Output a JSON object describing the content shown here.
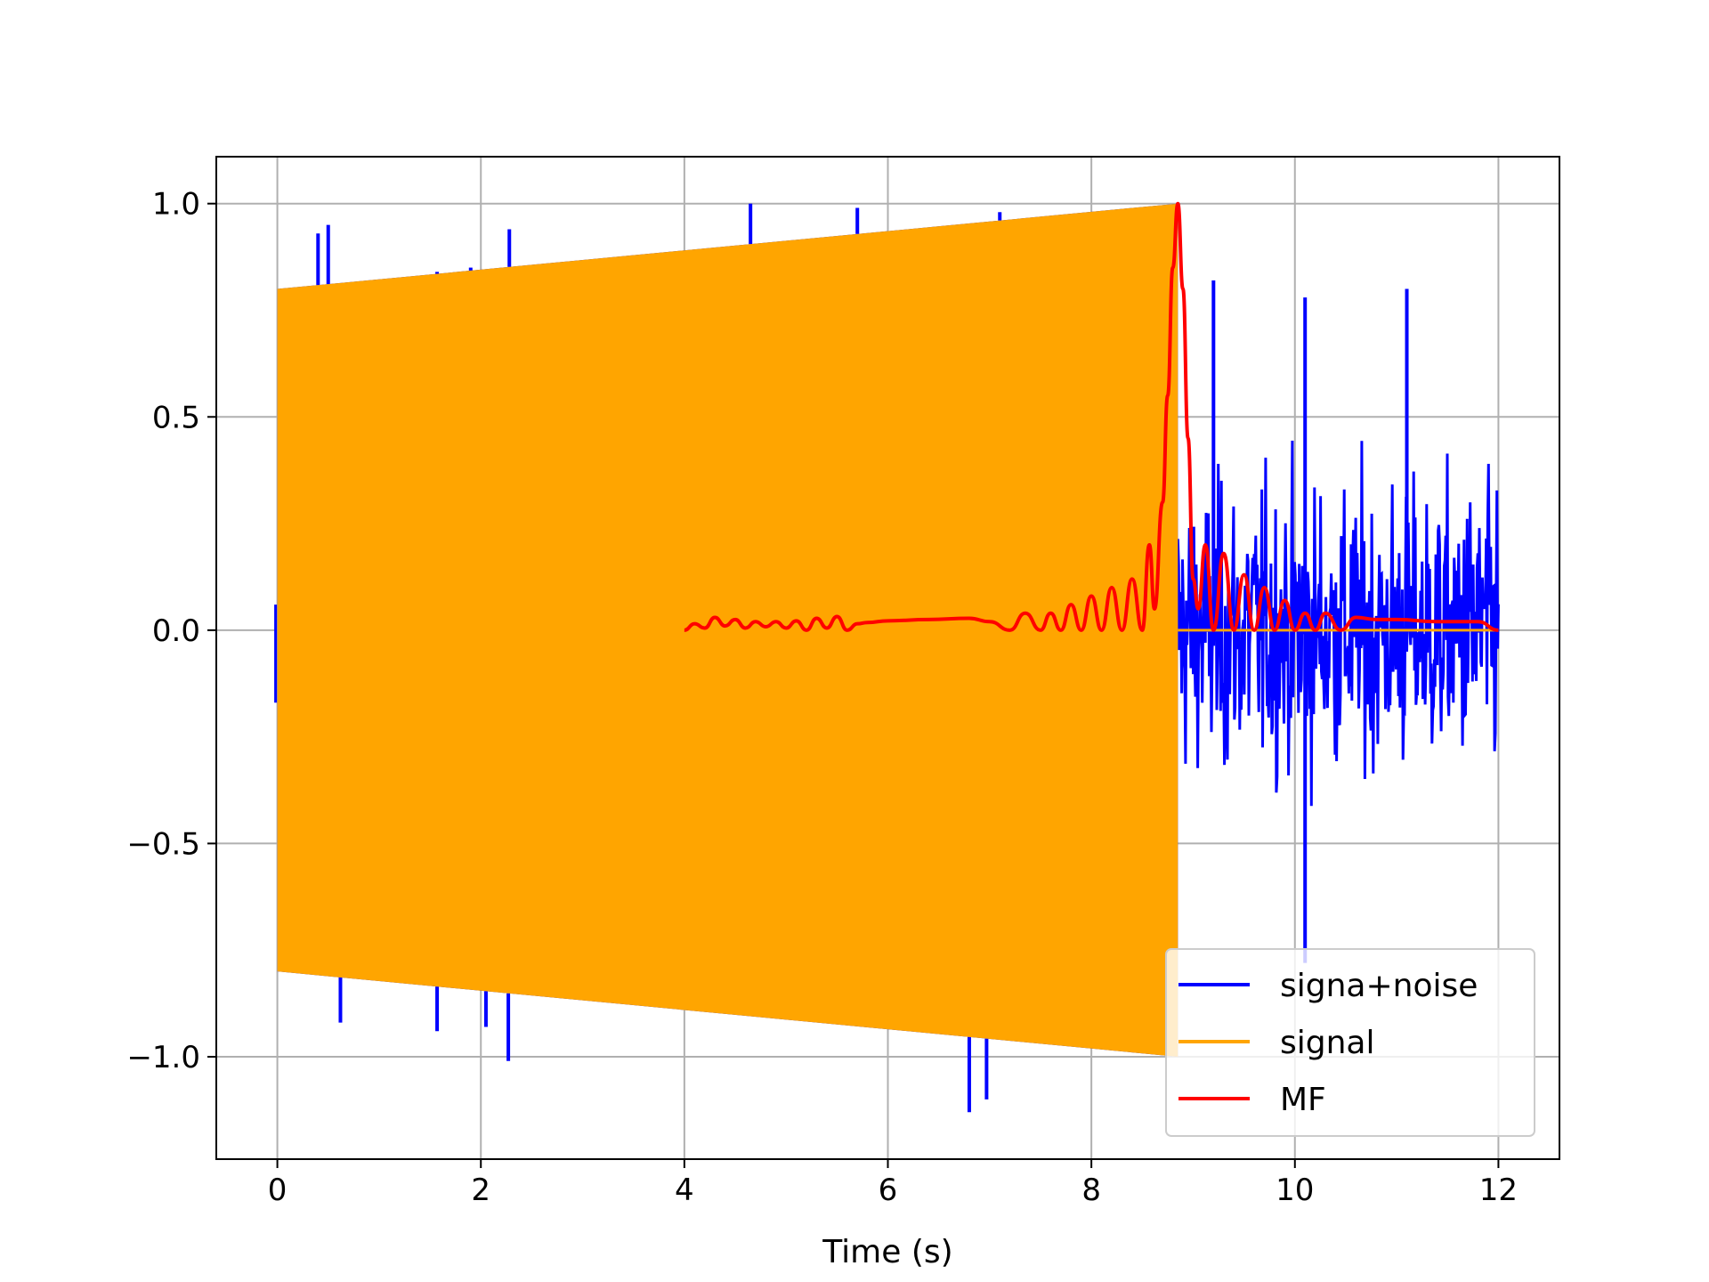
{
  "chart_data": {
    "type": "line",
    "title": "",
    "xlabel": "Time (s)",
    "ylabel": "",
    "xlim": [
      -0.6,
      12.6
    ],
    "ylim": [
      -1.24,
      1.11
    ],
    "xticks": [
      0,
      2,
      4,
      6,
      8,
      10,
      12
    ],
    "xtick_labels": [
      "0",
      "2",
      "4",
      "6",
      "8",
      "10",
      "12"
    ],
    "yticks": [
      -1.0,
      -0.5,
      0.0,
      0.5,
      1.0
    ],
    "ytick_labels": [
      "−1.0",
      "−0.5",
      "0.0",
      "0.5",
      "1.0"
    ],
    "grid": true,
    "legend_position": "lower-right",
    "series": [
      {
        "name": "signa+noise",
        "color": "#0000ff",
        "description_points": {
          "envelope_during_signal": {
            "x": [
              0,
              8.85
            ],
            "upper": [
              0.8,
              1.0
            ],
            "lower": [
              -0.8,
              -1.0
            ]
          },
          "noise_after_signal": {
            "x": [
              8.85,
              12.0
            ],
            "amplitude": 0.65
          },
          "spikes": [
            {
              "x": 0.4,
              "y": 0.93
            },
            {
              "x": 0.5,
              "y": 0.95
            },
            {
              "x": 0.62,
              "y": -0.92
            },
            {
              "x": 1.57,
              "y": 0.84
            },
            {
              "x": 1.57,
              "y": -0.94
            },
            {
              "x": 1.9,
              "y": 0.85
            },
            {
              "x": 2.28,
              "y": 0.94
            },
            {
              "x": 2.27,
              "y": -1.01
            },
            {
              "x": 2.05,
              "y": -0.93
            },
            {
              "x": 4.65,
              "y": 1.0
            },
            {
              "x": 5.7,
              "y": 0.99
            },
            {
              "x": 6.8,
              "y": -1.13
            },
            {
              "x": 6.97,
              "y": -1.1
            },
            {
              "x": 7.1,
              "y": 0.98
            },
            {
              "x": 9.2,
              "y": 0.82
            },
            {
              "x": 10.1,
              "y": 0.78
            },
            {
              "x": 10.1,
              "y": -0.78
            },
            {
              "x": 11.1,
              "y": 0.8
            }
          ]
        }
      },
      {
        "name": "signal",
        "color": "#ffa500",
        "description_points": {
          "x_start": 0.0,
          "x_end": 8.85,
          "amplitude_start": 0.8,
          "amplitude_end": 1.0,
          "after_end_value": 0.0,
          "after_end_x": [
            8.85,
            12.0
          ]
        }
      },
      {
        "name": "MF",
        "color": "#ff0000",
        "x": [
          4.0,
          4.1,
          4.2,
          4.3,
          4.4,
          4.5,
          4.6,
          4.7,
          4.8,
          4.9,
          5.0,
          5.1,
          5.2,
          5.3,
          5.4,
          5.5,
          5.6,
          5.7,
          5.8,
          6.0,
          6.4,
          6.8,
          7.0,
          7.2,
          7.35,
          7.5,
          7.6,
          7.7,
          7.8,
          7.9,
          8.0,
          8.1,
          8.2,
          8.3,
          8.4,
          8.5,
          8.57,
          8.62,
          8.7,
          8.75,
          8.8,
          8.85,
          8.9,
          8.95,
          9.0,
          9.05,
          9.12,
          9.2,
          9.3,
          9.4,
          9.5,
          9.6,
          9.7,
          9.8,
          9.9,
          10.0,
          10.1,
          10.2,
          10.3,
          10.45,
          10.6,
          10.8,
          11.0,
          11.4,
          11.8,
          12.0
        ],
        "y": [
          0.0,
          0.015,
          0.005,
          0.03,
          0.01,
          0.025,
          0.005,
          0.02,
          0.008,
          0.02,
          0.005,
          0.022,
          0.0,
          0.028,
          0.005,
          0.032,
          0.0,
          0.015,
          0.018,
          0.022,
          0.025,
          0.028,
          0.02,
          0.0,
          0.04,
          0.0,
          0.04,
          0.0,
          0.06,
          0.0,
          0.08,
          0.0,
          0.1,
          0.0,
          0.12,
          0.0,
          0.2,
          0.05,
          0.3,
          0.55,
          0.85,
          1.0,
          0.8,
          0.45,
          0.12,
          0.05,
          0.2,
          0.0,
          0.18,
          0.0,
          0.13,
          0.0,
          0.1,
          0.0,
          0.07,
          0.0,
          0.04,
          0.0,
          0.04,
          0.0,
          0.03,
          0.025,
          0.025,
          0.02,
          0.02,
          0.0
        ]
      }
    ]
  }
}
